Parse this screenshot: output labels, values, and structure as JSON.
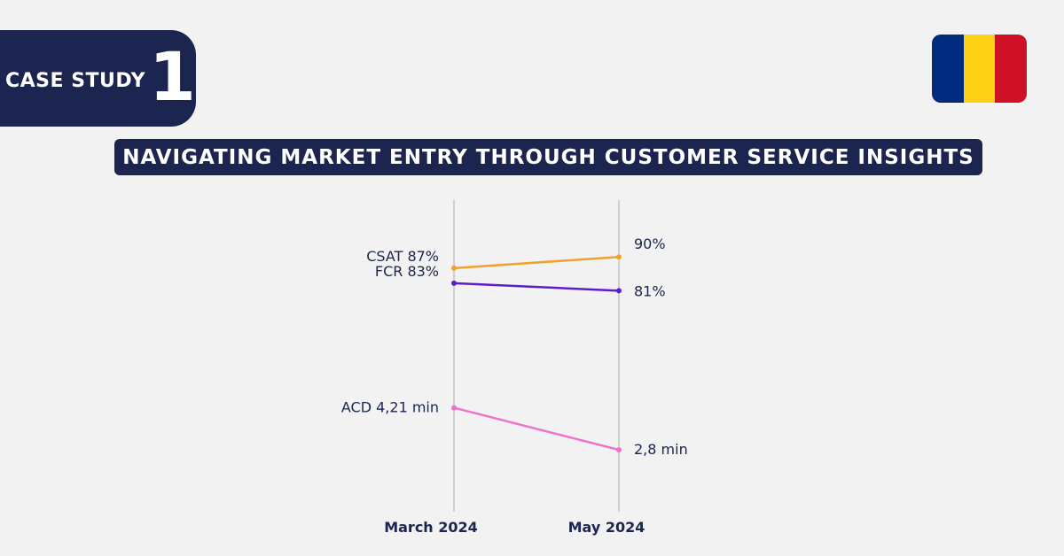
{
  "badge": {
    "label": "CASE STUDY",
    "number": "1"
  },
  "flag": {
    "colors": [
      "#002b7f",
      "#fcd116",
      "#ce1126"
    ]
  },
  "headline": "NAVIGATING MARKET ENTRY THROUGH CUSTOMER SERVICE INSIGHTS",
  "chart_data": {
    "type": "line",
    "categories": [
      "March 2024",
      "May 2024"
    ],
    "series": [
      {
        "name": "CSAT",
        "values": [
          87,
          90
        ],
        "unit": "%",
        "color": "#f0a12e",
        "labels": [
          "CSAT 87%",
          "90%"
        ],
        "axis": "percent"
      },
      {
        "name": "FCR",
        "values": [
          83,
          81
        ],
        "unit": "%",
        "color": "#5b1dc9",
        "labels": [
          "FCR 83%",
          "81%"
        ],
        "axis": "percent"
      },
      {
        "name": "ACD",
        "values": [
          4.21,
          2.8
        ],
        "unit": "min",
        "color": "#ee72c6",
        "labels": [
          "ACD 4,21 min",
          "2,8 min"
        ],
        "axis": "minutes"
      }
    ],
    "grid": false,
    "legend": "none"
  }
}
